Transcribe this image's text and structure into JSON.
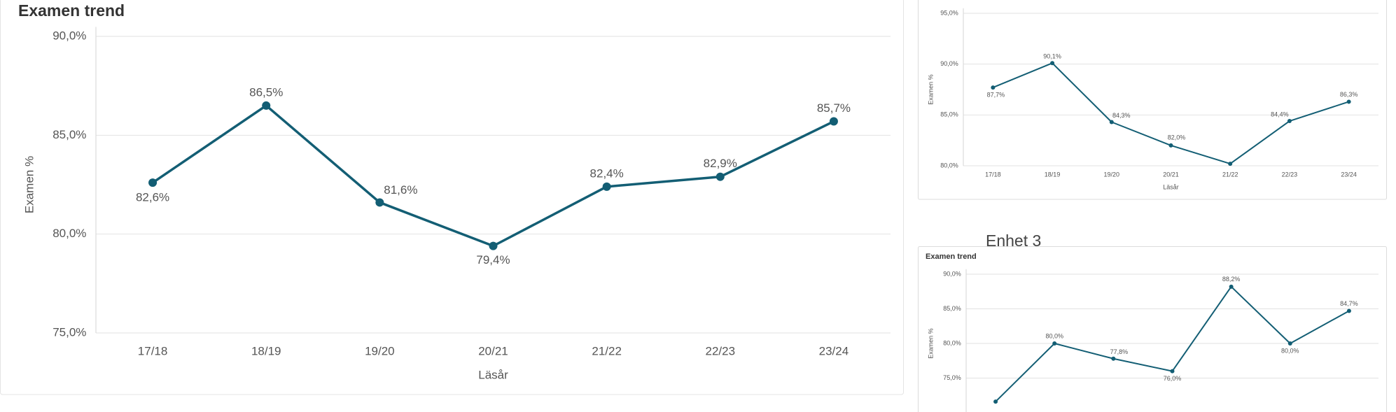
{
  "chart_data": [
    {
      "type": "line",
      "title": "Examen trend",
      "y_label": "Examen %",
      "x_label": "Läsår",
      "color": "#135e74",
      "categories": [
        "17/18",
        "18/19",
        "19/20",
        "20/21",
        "21/22",
        "22/23",
        "23/24"
      ],
      "values": [
        82.6,
        86.5,
        81.6,
        79.4,
        82.4,
        82.9,
        85.7
      ],
      "value_labels": [
        "82,6%",
        "86,5%",
        "81,6%",
        "79,4%",
        "82,4%",
        "82,9%",
        "85,7%"
      ],
      "ylim": [
        75,
        90
      ],
      "yticks": [
        {
          "value": 75,
          "label": "75,0%"
        },
        {
          "value": 80,
          "label": "80,0%"
        },
        {
          "value": 85,
          "label": "85,0%"
        },
        {
          "value": 90,
          "label": "90,0%"
        }
      ],
      "grid": true
    },
    {
      "type": "line",
      "y_label": "Examen %",
      "x_label": "Läsår",
      "color": "#135e74",
      "categories": [
        "17/18",
        "18/19",
        "19/20",
        "20/21",
        "21/22",
        "22/23",
        "23/24"
      ],
      "values": [
        87.7,
        90.1,
        84.3,
        82.0,
        80.2,
        84.4,
        86.3
      ],
      "value_labels": [
        "87,7%",
        "90,1%",
        "84,3%",
        "82,0%",
        null,
        "84,4%",
        "86,3%"
      ],
      "ylim": [
        80,
        95
      ],
      "yticks": [
        {
          "value": 80,
          "label": "80,0%"
        },
        {
          "value": 85,
          "label": "85,0%"
        },
        {
          "value": 90,
          "label": "90,0%"
        },
        {
          "value": 95,
          "label": "95,0%"
        }
      ],
      "grid": true
    },
    {
      "type": "line",
      "heading": "Enhet 3",
      "title": "Examen trend",
      "y_label": "Examen %",
      "color": "#135e74",
      "categories": [
        null,
        null,
        null,
        null,
        null,
        null,
        null
      ],
      "values": [
        71.6,
        80.0,
        77.8,
        76.0,
        88.2,
        80.0,
        84.7
      ],
      "value_labels": [
        null,
        "80,0%",
        "77,8%",
        "76,0%",
        "88,2%",
        "80,0%",
        "84,7%"
      ],
      "ylim": [
        70,
        90
      ],
      "yticks": [
        {
          "value": 75,
          "label": "75,0%"
        },
        {
          "value": 80,
          "label": "80,0%"
        },
        {
          "value": 85,
          "label": "85,0%"
        },
        {
          "value": 90,
          "label": "90,0%"
        }
      ],
      "grid": true
    }
  ]
}
